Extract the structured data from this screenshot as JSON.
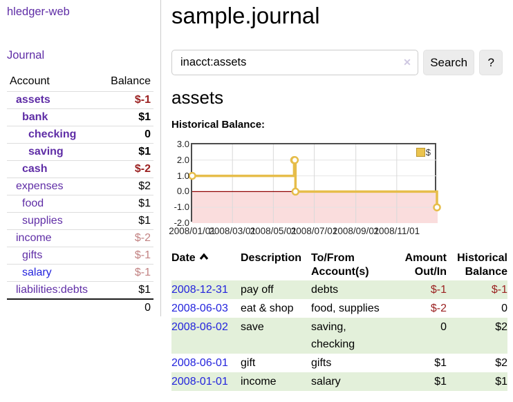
{
  "app": {
    "brand": "hledger-web"
  },
  "sidebar": {
    "journal_link": "Journal",
    "accounts": {
      "headers": [
        "Account",
        "Balance"
      ],
      "rows": [
        {
          "name": "assets",
          "indent": 1,
          "bold": true,
          "link_color": "purple",
          "balance": "$-1",
          "balance_style": "neg-strong"
        },
        {
          "name": "bank",
          "indent": 2,
          "bold": true,
          "link_color": "purple",
          "balance": "$1",
          "balance_style": "pos"
        },
        {
          "name": "checking",
          "indent": 3,
          "bold": true,
          "link_color": "purple",
          "balance": "0",
          "balance_style": "pos"
        },
        {
          "name": "saving",
          "indent": 3,
          "bold": true,
          "link_color": "purple",
          "balance": "$1",
          "balance_style": "pos"
        },
        {
          "name": "cash",
          "indent": 2,
          "bold": true,
          "link_color": "purple",
          "balance": "$-2",
          "balance_style": "neg-strong"
        },
        {
          "name": "expenses",
          "indent": 1,
          "bold": false,
          "link_color": "purple",
          "balance": "$2",
          "balance_style": "pos"
        },
        {
          "name": "food",
          "indent": 2,
          "bold": false,
          "link_color": "purple",
          "balance": "$1",
          "balance_style": "pos"
        },
        {
          "name": "supplies",
          "indent": 2,
          "bold": false,
          "link_color": "purple",
          "balance": "$1",
          "balance_style": "pos"
        },
        {
          "name": "income",
          "indent": 1,
          "bold": false,
          "link_color": "purple",
          "balance": "$-2",
          "balance_style": "neg-light"
        },
        {
          "name": "gifts",
          "indent": 2,
          "bold": false,
          "link_color": "purple",
          "balance": "$-1",
          "balance_style": "neg-light"
        },
        {
          "name": "salary",
          "indent": 2,
          "bold": false,
          "link_color": "blue",
          "balance": "$-1",
          "balance_style": "neg-light"
        },
        {
          "name": "liabilities:debts",
          "indent": 1,
          "bold": false,
          "link_color": "purple",
          "balance": "$1",
          "balance_style": "pos"
        }
      ],
      "total": "0"
    }
  },
  "main": {
    "title": "sample.journal",
    "search": {
      "value": "inacct:assets",
      "clear_icon": "✕",
      "button_label": "Search",
      "help_label": "?"
    },
    "account_heading": "assets",
    "chart_label": "Historical Balance:"
  },
  "chart_data": {
    "type": "line",
    "step": true,
    "title": "Historical Balance",
    "series": [
      {
        "name": "$",
        "points": [
          [
            "2008-01-01",
            1
          ],
          [
            "2008-06-01",
            2
          ],
          [
            "2008-06-02",
            2
          ],
          [
            "2008-06-03",
            0
          ],
          [
            "2008-12-31",
            -1
          ]
        ]
      }
    ],
    "x_range": [
      "2008-01-01",
      "2009-01-01"
    ],
    "ylim": [
      -2,
      3
    ],
    "ytick_labels": [
      "3.0",
      "2.0",
      "1.0",
      "0.0",
      "-1.0",
      "-2.0"
    ],
    "xtick_labels": [
      "2008/01/01",
      "2008/03/01",
      "2008/05/01",
      "2008/07/01",
      "2008/09/01",
      "2008/11/01"
    ],
    "grid": true,
    "legend_position": "top-right",
    "colors": {
      "line": "#e6bd4a",
      "marker_fill": "#ffffff",
      "negative_fill": "#fadddd",
      "zero_line": "#8f0000",
      "vgrid": "#d9d9d9",
      "hgrid": "#e4e4e4",
      "frame": "#4c4c4c"
    }
  },
  "register": {
    "headers": [
      "Date",
      "Description",
      "To/From Account(s)",
      "Amount Out/In",
      "Historical Balance"
    ],
    "rows": [
      {
        "date": "2008-12-31",
        "description": "pay off",
        "accounts": "debts",
        "amount": "$-1",
        "balance": "$-1",
        "shaded": true
      },
      {
        "date": "2008-06-03",
        "description": "eat & shop",
        "accounts": "food, supplies",
        "amount": "$-2",
        "balance": "0",
        "shaded": false
      },
      {
        "date": "2008-06-02",
        "description": "save",
        "accounts": "saving, checking",
        "amount": "0",
        "balance": "$2",
        "shaded": true
      },
      {
        "date": "2008-06-01",
        "description": "gift",
        "accounts": "gifts",
        "amount": "$1",
        "balance": "$2",
        "shaded": false
      },
      {
        "date": "2008-01-01",
        "description": "income",
        "accounts": "salary",
        "amount": "$1",
        "balance": "$1",
        "shaded": true
      }
    ]
  }
}
